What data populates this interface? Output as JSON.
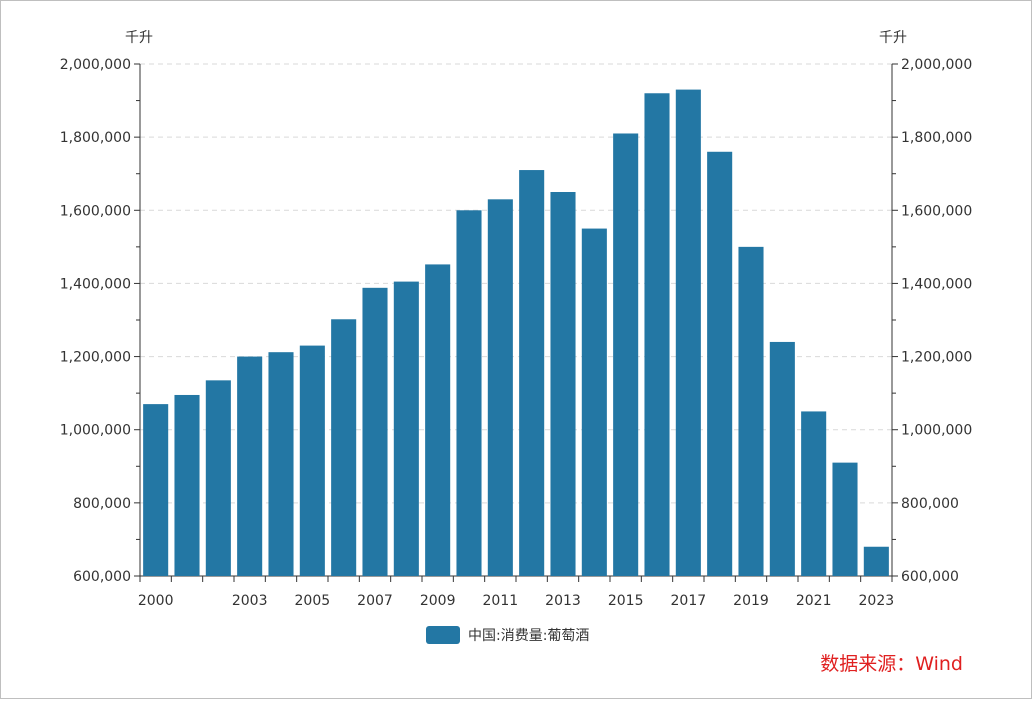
{
  "chart_data": {
    "type": "bar",
    "categories": [
      "2000",
      "2001",
      "2002",
      "2003",
      "2004",
      "2005",
      "2006",
      "2007",
      "2008",
      "2009",
      "2010",
      "2011",
      "2012",
      "2013",
      "2014",
      "2015",
      "2016",
      "2017",
      "2018",
      "2019",
      "2020",
      "2021",
      "2022",
      "2023"
    ],
    "x_tick_labels": [
      "2000",
      "",
      "",
      "2003",
      "",
      "2005",
      "",
      "2007",
      "",
      "2009",
      "",
      "2011",
      "",
      "2013",
      "",
      "2015",
      "",
      "2017",
      "",
      "2019",
      "",
      "2021",
      "",
      "2023"
    ],
    "series": [
      {
        "name": "中国:消费量:葡萄酒",
        "values": [
          1070000,
          1095000,
          1135000,
          1200000,
          1212000,
          1230000,
          1302000,
          1388000,
          1405000,
          1452000,
          1600000,
          1630000,
          1710000,
          1650000,
          1550000,
          1810000,
          1920000,
          1930000,
          1760000,
          1500000,
          1240000,
          1050000,
          910000,
          680000
        ]
      }
    ],
    "ylim": [
      600000,
      2000000
    ],
    "y_ticks": [
      "600,000",
      "800,000",
      "1,000,000",
      "1,200,000",
      "1,400,000",
      "1,600,000",
      "1,800,000",
      "2,000,000"
    ],
    "y_unit_left": "千升",
    "y_unit_right": "千升",
    "grid": true,
    "legend_position": "bottom",
    "bar_color": "#2377a4"
  },
  "source_text": "数据来源：Wind"
}
